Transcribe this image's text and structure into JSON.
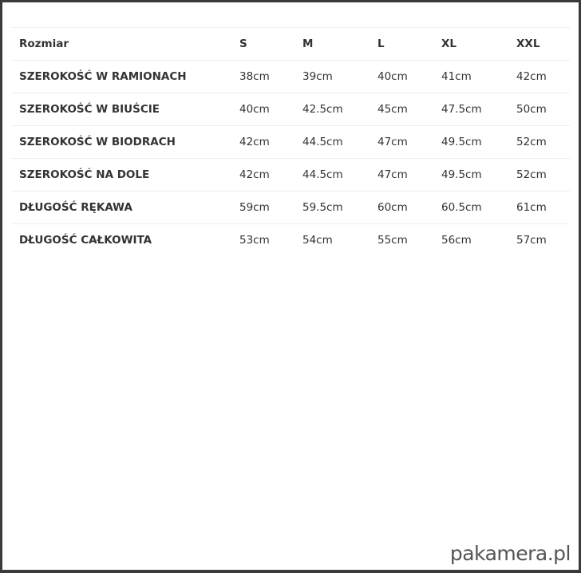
{
  "table": {
    "headers": [
      "Rozmiar",
      "S",
      "M",
      "L",
      "XL",
      "XXL"
    ],
    "rows": [
      {
        "label": "SZEROKOŚĆ W RAMIONACH",
        "values": [
          "38cm",
          "39cm",
          "40cm",
          "41cm",
          "42cm"
        ]
      },
      {
        "label": "SZEROKOŚĆ W BIUŚCIE",
        "values": [
          "40cm",
          "42.5cm",
          "45cm",
          "47.5cm",
          "50cm"
        ]
      },
      {
        "label": "SZEROKOŚĆ W BIODRACH",
        "values": [
          "42cm",
          "44.5cm",
          "47cm",
          "49.5cm",
          "52cm"
        ]
      },
      {
        "label": "SZEROKOŚĆ NA DOLE",
        "values": [
          "42cm",
          "44.5cm",
          "47cm",
          "49.5cm",
          "52cm"
        ]
      },
      {
        "label": "DŁUGOŚĆ RĘKAWA",
        "values": [
          "59cm",
          "59.5cm",
          "60cm",
          "60.5cm",
          "61cm"
        ]
      },
      {
        "label": "DŁUGOŚĆ CAŁKOWITA",
        "values": [
          "53cm",
          "54cm",
          "55cm",
          "56cm",
          "57cm"
        ]
      }
    ]
  },
  "watermark": "pakamera.pl"
}
